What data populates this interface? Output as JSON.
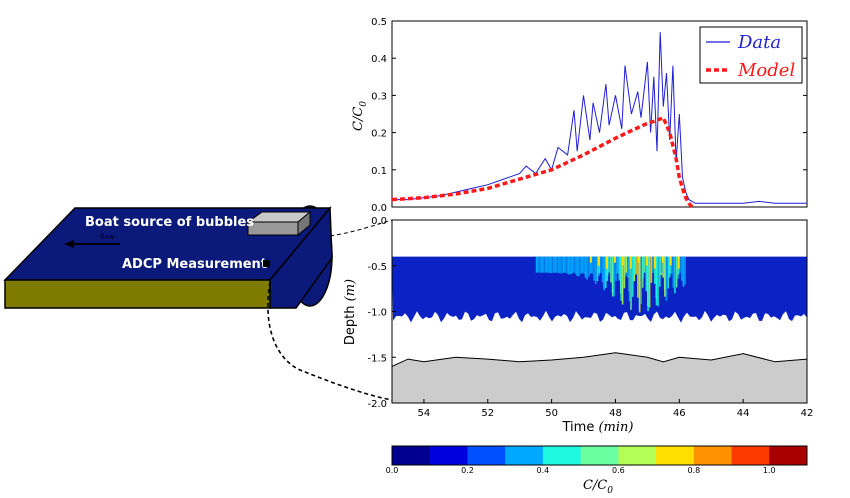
{
  "diagram": {
    "boat_label": "Boat source of bubbles",
    "adcp_label": "ADCP Measurement",
    "flow_label": "flow",
    "colors": {
      "water": "#0b1a7a",
      "riverbed": "#7f7a00",
      "boat": "#aaaaaa"
    }
  },
  "chart_data": [
    {
      "type": "line",
      "ylabel": "C/C0",
      "xlim": [
        55,
        42
      ],
      "ylim": [
        0,
        0.5
      ],
      "yticks": [
        "0.0",
        "0.1",
        "0.2",
        "0.3",
        "0.4",
        "0.5"
      ],
      "grid": false,
      "legend_position": "top-right",
      "series": [
        {
          "name": "Data",
          "color": "#1f1fd6",
          "x": [
            55,
            54.5,
            54,
            53.5,
            53,
            52.5,
            52,
            51.5,
            51,
            50.8,
            50.5,
            50.2,
            50,
            49.8,
            49.5,
            49.3,
            49.2,
            49,
            48.8,
            48.7,
            48.5,
            48.3,
            48.2,
            48,
            47.8,
            47.7,
            47.5,
            47.3,
            47.2,
            47,
            46.9,
            46.8,
            46.7,
            46.6,
            46.5,
            46.4,
            46.3,
            46.2,
            46.1,
            46,
            45.9,
            45.8,
            45.7,
            45.5,
            45,
            44.5,
            44,
            43.5,
            43,
            42.5,
            42
          ],
          "y": [
            0.02,
            0.02,
            0.025,
            0.03,
            0.04,
            0.05,
            0.06,
            0.075,
            0.09,
            0.11,
            0.09,
            0.13,
            0.1,
            0.16,
            0.14,
            0.26,
            0.15,
            0.3,
            0.18,
            0.28,
            0.2,
            0.33,
            0.22,
            0.3,
            0.21,
            0.38,
            0.25,
            0.31,
            0.24,
            0.39,
            0.2,
            0.35,
            0.15,
            0.47,
            0.27,
            0.36,
            0.18,
            0.38,
            0.12,
            0.25,
            0.08,
            0.04,
            0.02,
            0.01,
            0.01,
            0.01,
            0.01,
            0.015,
            0.01,
            0.01,
            0.01
          ]
        },
        {
          "name": "Model",
          "color": "#ff1a1a",
          "x": [
            55,
            54,
            53,
            52,
            51,
            50,
            49,
            48,
            47.5,
            47,
            46.8,
            46.5,
            46.3,
            46.1,
            46,
            45.9,
            45.8,
            45.7,
            45.6
          ],
          "y": [
            0.02,
            0.025,
            0.035,
            0.05,
            0.075,
            0.1,
            0.14,
            0.185,
            0.205,
            0.225,
            0.23,
            0.24,
            0.2,
            0.13,
            0.08,
            0.05,
            0.025,
            0.01,
            0.0
          ]
        }
      ]
    },
    {
      "type": "heatmap",
      "xlabel": "Time (min)",
      "ylabel": "Depth (m)",
      "xlim": [
        55,
        42
      ],
      "ylim": [
        -2.0,
        0.0
      ],
      "xticks": [
        "54",
        "52",
        "50",
        "48",
        "46",
        "44",
        "42"
      ],
      "yticks": [
        "0.0",
        "-0.5",
        "-1.0",
        "-1.5",
        "-2.0"
      ],
      "measured_depth_range": [
        -0.4,
        -1.1
      ],
      "bed_depth": [
        {
          "x": 55,
          "y": -1.6
        },
        {
          "x": 54.5,
          "y": -1.52
        },
        {
          "x": 54,
          "y": -1.55
        },
        {
          "x": 53,
          "y": -1.5
        },
        {
          "x": 52,
          "y": -1.52
        },
        {
          "x": 51,
          "y": -1.55
        },
        {
          "x": 50,
          "y": -1.53
        },
        {
          "x": 49,
          "y": -1.5
        },
        {
          "x": 48,
          "y": -1.45
        },
        {
          "x": 47,
          "y": -1.5
        },
        {
          "x": 46.5,
          "y": -1.55
        },
        {
          "x": 46,
          "y": -1.5
        },
        {
          "x": 45,
          "y": -1.53
        },
        {
          "x": 44,
          "y": -1.46
        },
        {
          "x": 43,
          "y": -1.55
        },
        {
          "x": 42,
          "y": -1.52
        }
      ],
      "colormap": "jet",
      "hotspot_window": [
        50.5,
        45.8
      ]
    }
  ],
  "colorbar": {
    "label": "C/C0",
    "ticks": [
      "0.0",
      "0.2",
      "0.4",
      "0.6",
      "0.8",
      "1.0"
    ],
    "range": [
      0,
      1.1
    ],
    "colors": [
      "#00008f",
      "#0000df",
      "#0050ff",
      "#00a8ff",
      "#1ef8e0",
      "#6affa0",
      "#b4ff56",
      "#ffe000",
      "#ff9200",
      "#ff3a00",
      "#a80000"
    ]
  }
}
